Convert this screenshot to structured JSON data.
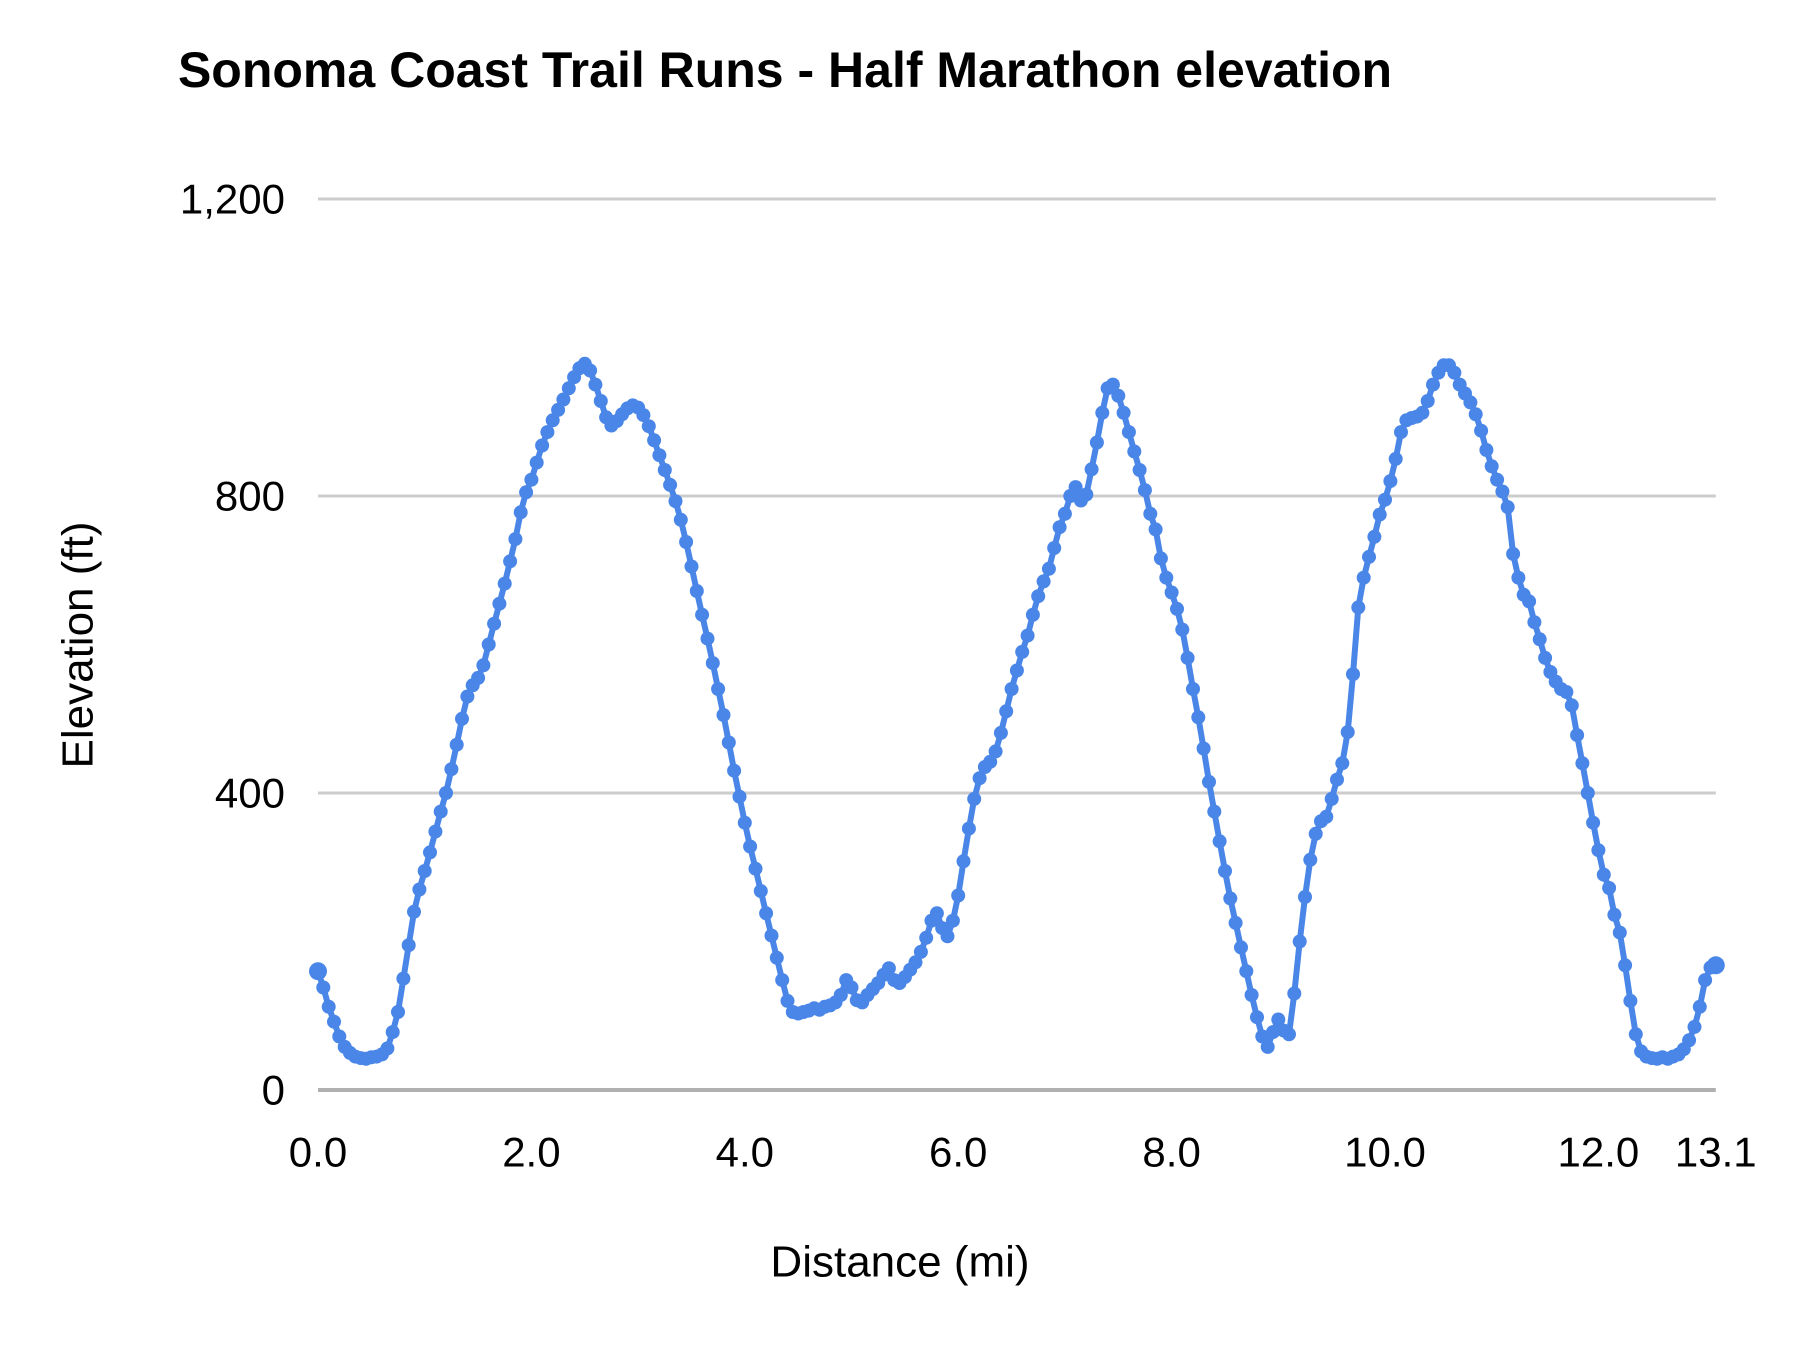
{
  "colors": {
    "series": "#4a86e8",
    "gridline": "#cccccc",
    "axis_line": "#b0b0b0",
    "text": "#000000",
    "background": "#ffffff"
  },
  "chart_data": {
    "type": "line",
    "title": "Sonoma Coast Trail Runs - Half Marathon elevation",
    "xlabel": "Distance (mi)",
    "ylabel": "Elevation (ft)",
    "xlim": [
      0,
      13.1
    ],
    "ylim": [
      0,
      1200
    ],
    "grid": "horizontal",
    "legend": "none",
    "marker": "circle",
    "x_ticks": [
      0,
      2,
      4,
      6,
      8,
      10,
      12,
      13.1
    ],
    "x_tick_labels": [
      "0.0",
      "2.0",
      "4.0",
      "6.0",
      "8.0",
      "10.0",
      "12.0",
      "13.1"
    ],
    "y_ticks": [
      0,
      400,
      800,
      1200
    ],
    "y_tick_labels": [
      "0",
      "400",
      "800",
      "1,200"
    ],
    "series": [
      {
        "name": "Elevation",
        "color": "#4a86e8",
        "points": [
          [
            0.0,
            160
          ],
          [
            0.05,
            138
          ],
          [
            0.1,
            112
          ],
          [
            0.15,
            92
          ],
          [
            0.2,
            72
          ],
          [
            0.25,
            58
          ],
          [
            0.3,
            50
          ],
          [
            0.35,
            45
          ],
          [
            0.4,
            43
          ],
          [
            0.45,
            42
          ],
          [
            0.5,
            44
          ],
          [
            0.55,
            45
          ],
          [
            0.6,
            48
          ],
          [
            0.65,
            56
          ],
          [
            0.7,
            78
          ],
          [
            0.75,
            105
          ],
          [
            0.8,
            150
          ],
          [
            0.85,
            195
          ],
          [
            0.9,
            240
          ],
          [
            0.95,
            270
          ],
          [
            1.0,
            295
          ],
          [
            1.05,
            320
          ],
          [
            1.1,
            348
          ],
          [
            1.15,
            375
          ],
          [
            1.2,
            400
          ],
          [
            1.25,
            432
          ],
          [
            1.3,
            465
          ],
          [
            1.35,
            500
          ],
          [
            1.4,
            530
          ],
          [
            1.45,
            545
          ],
          [
            1.5,
            555
          ],
          [
            1.55,
            572
          ],
          [
            1.6,
            600
          ],
          [
            1.65,
            628
          ],
          [
            1.7,
            655
          ],
          [
            1.75,
            682
          ],
          [
            1.8,
            712
          ],
          [
            1.85,
            742
          ],
          [
            1.9,
            778
          ],
          [
            1.95,
            805
          ],
          [
            2.0,
            822
          ],
          [
            2.05,
            845
          ],
          [
            2.1,
            868
          ],
          [
            2.15,
            886
          ],
          [
            2.2,
            902
          ],
          [
            2.25,
            916
          ],
          [
            2.3,
            930
          ],
          [
            2.35,
            945
          ],
          [
            2.4,
            960
          ],
          [
            2.45,
            972
          ],
          [
            2.5,
            978
          ],
          [
            2.55,
            969
          ],
          [
            2.6,
            950
          ],
          [
            2.65,
            928
          ],
          [
            2.7,
            906
          ],
          [
            2.75,
            895
          ],
          [
            2.8,
            901
          ],
          [
            2.85,
            910
          ],
          [
            2.9,
            918
          ],
          [
            2.95,
            922
          ],
          [
            3.0,
            919
          ],
          [
            3.05,
            909
          ],
          [
            3.1,
            894
          ],
          [
            3.15,
            875
          ],
          [
            3.2,
            855
          ],
          [
            3.25,
            835
          ],
          [
            3.3,
            815
          ],
          [
            3.35,
            793
          ],
          [
            3.4,
            768
          ],
          [
            3.45,
            738
          ],
          [
            3.5,
            705
          ],
          [
            3.55,
            672
          ],
          [
            3.6,
            640
          ],
          [
            3.65,
            608
          ],
          [
            3.7,
            575
          ],
          [
            3.75,
            540
          ],
          [
            3.8,
            505
          ],
          [
            3.85,
            468
          ],
          [
            3.9,
            430
          ],
          [
            3.95,
            395
          ],
          [
            4.0,
            360
          ],
          [
            4.05,
            328
          ],
          [
            4.1,
            298
          ],
          [
            4.15,
            268
          ],
          [
            4.2,
            238
          ],
          [
            4.25,
            208
          ],
          [
            4.3,
            178
          ],
          [
            4.35,
            148
          ],
          [
            4.4,
            120
          ],
          [
            4.45,
            105
          ],
          [
            4.5,
            103
          ],
          [
            4.55,
            105
          ],
          [
            4.6,
            107
          ],
          [
            4.65,
            110
          ],
          [
            4.7,
            108
          ],
          [
            4.75,
            112
          ],
          [
            4.8,
            114
          ],
          [
            4.85,
            118
          ],
          [
            4.9,
            128
          ],
          [
            4.95,
            148
          ],
          [
            5.0,
            138
          ],
          [
            5.05,
            121
          ],
          [
            5.1,
            118
          ],
          [
            5.15,
            128
          ],
          [
            5.2,
            136
          ],
          [
            5.25,
            144
          ],
          [
            5.3,
            155
          ],
          [
            5.35,
            164
          ],
          [
            5.4,
            148
          ],
          [
            5.45,
            144
          ],
          [
            5.5,
            152
          ],
          [
            5.55,
            162
          ],
          [
            5.6,
            172
          ],
          [
            5.65,
            186
          ],
          [
            5.7,
            205
          ],
          [
            5.75,
            228
          ],
          [
            5.8,
            238
          ],
          [
            5.85,
            218
          ],
          [
            5.9,
            207
          ],
          [
            5.95,
            228
          ],
          [
            6.0,
            262
          ],
          [
            6.05,
            308
          ],
          [
            6.1,
            352
          ],
          [
            6.15,
            392
          ],
          [
            6.2,
            420
          ],
          [
            6.25,
            435
          ],
          [
            6.3,
            442
          ],
          [
            6.35,
            456
          ],
          [
            6.4,
            481
          ],
          [
            6.45,
            510
          ],
          [
            6.5,
            540
          ],
          [
            6.55,
            565
          ],
          [
            6.6,
            590
          ],
          [
            6.65,
            612
          ],
          [
            6.7,
            640
          ],
          [
            6.75,
            665
          ],
          [
            6.8,
            685
          ],
          [
            6.85,
            702
          ],
          [
            6.9,
            730
          ],
          [
            6.95,
            758
          ],
          [
            7.0,
            776
          ],
          [
            7.05,
            800
          ],
          [
            7.1,
            812
          ],
          [
            7.15,
            794
          ],
          [
            7.2,
            802
          ],
          [
            7.25,
            836
          ],
          [
            7.3,
            872
          ],
          [
            7.35,
            912
          ],
          [
            7.4,
            945
          ],
          [
            7.45,
            950
          ],
          [
            7.5,
            935
          ],
          [
            7.55,
            912
          ],
          [
            7.6,
            886
          ],
          [
            7.65,
            860
          ],
          [
            7.7,
            835
          ],
          [
            7.75,
            808
          ],
          [
            7.8,
            776
          ],
          [
            7.85,
            755
          ],
          [
            7.9,
            716
          ],
          [
            7.95,
            690
          ],
          [
            8.0,
            670
          ],
          [
            8.05,
            648
          ],
          [
            8.1,
            620
          ],
          [
            8.15,
            582
          ],
          [
            8.2,
            540
          ],
          [
            8.25,
            502
          ],
          [
            8.3,
            460
          ],
          [
            8.35,
            415
          ],
          [
            8.4,
            375
          ],
          [
            8.45,
            335
          ],
          [
            8.5,
            295
          ],
          [
            8.55,
            258
          ],
          [
            8.6,
            225
          ],
          [
            8.65,
            192
          ],
          [
            8.7,
            160
          ],
          [
            8.75,
            128
          ],
          [
            8.8,
            98
          ],
          [
            8.85,
            72
          ],
          [
            8.9,
            58
          ],
          [
            8.95,
            78
          ],
          [
            9.0,
            95
          ],
          [
            9.05,
            80
          ],
          [
            9.1,
            75
          ],
          [
            9.15,
            130
          ],
          [
            9.2,
            200
          ],
          [
            9.25,
            260
          ],
          [
            9.3,
            310
          ],
          [
            9.35,
            345
          ],
          [
            9.4,
            362
          ],
          [
            9.45,
            368
          ],
          [
            9.5,
            392
          ],
          [
            9.55,
            418
          ],
          [
            9.6,
            440
          ],
          [
            9.65,
            482
          ],
          [
            9.7,
            560
          ],
          [
            9.75,
            650
          ],
          [
            9.8,
            690
          ],
          [
            9.85,
            718
          ],
          [
            9.9,
            745
          ],
          [
            9.95,
            775
          ],
          [
            10.0,
            795
          ],
          [
            10.05,
            820
          ],
          [
            10.1,
            850
          ],
          [
            10.15,
            886
          ],
          [
            10.2,
            902
          ],
          [
            10.25,
            905
          ],
          [
            10.3,
            907
          ],
          [
            10.35,
            912
          ],
          [
            10.4,
            928
          ],
          [
            10.45,
            950
          ],
          [
            10.5,
            966
          ],
          [
            10.55,
            976
          ],
          [
            10.6,
            976
          ],
          [
            10.65,
            966
          ],
          [
            10.7,
            950
          ],
          [
            10.75,
            938
          ],
          [
            10.8,
            926
          ],
          [
            10.85,
            910
          ],
          [
            10.9,
            888
          ],
          [
            10.95,
            862
          ],
          [
            11.0,
            840
          ],
          [
            11.05,
            822
          ],
          [
            11.1,
            806
          ],
          [
            11.15,
            785
          ],
          [
            11.2,
            722
          ],
          [
            11.25,
            690
          ],
          [
            11.3,
            667
          ],
          [
            11.35,
            658
          ],
          [
            11.4,
            630
          ],
          [
            11.45,
            607
          ],
          [
            11.5,
            582
          ],
          [
            11.55,
            563
          ],
          [
            11.6,
            550
          ],
          [
            11.65,
            540
          ],
          [
            11.7,
            536
          ],
          [
            11.75,
            518
          ],
          [
            11.8,
            478
          ],
          [
            11.85,
            440
          ],
          [
            11.9,
            400
          ],
          [
            11.95,
            360
          ],
          [
            12.0,
            323
          ],
          [
            12.05,
            290
          ],
          [
            12.1,
            272
          ],
          [
            12.15,
            236
          ],
          [
            12.2,
            212
          ],
          [
            12.25,
            168
          ],
          [
            12.3,
            120
          ],
          [
            12.35,
            75
          ],
          [
            12.4,
            52
          ],
          [
            12.45,
            45
          ],
          [
            12.5,
            43
          ],
          [
            12.55,
            42
          ],
          [
            12.6,
            44
          ],
          [
            12.65,
            42
          ],
          [
            12.7,
            45
          ],
          [
            12.75,
            48
          ],
          [
            12.8,
            55
          ],
          [
            12.85,
            67
          ],
          [
            12.9,
            85
          ],
          [
            12.95,
            112
          ],
          [
            13.0,
            148
          ],
          [
            13.05,
            165
          ],
          [
            13.1,
            168
          ]
        ]
      }
    ]
  }
}
